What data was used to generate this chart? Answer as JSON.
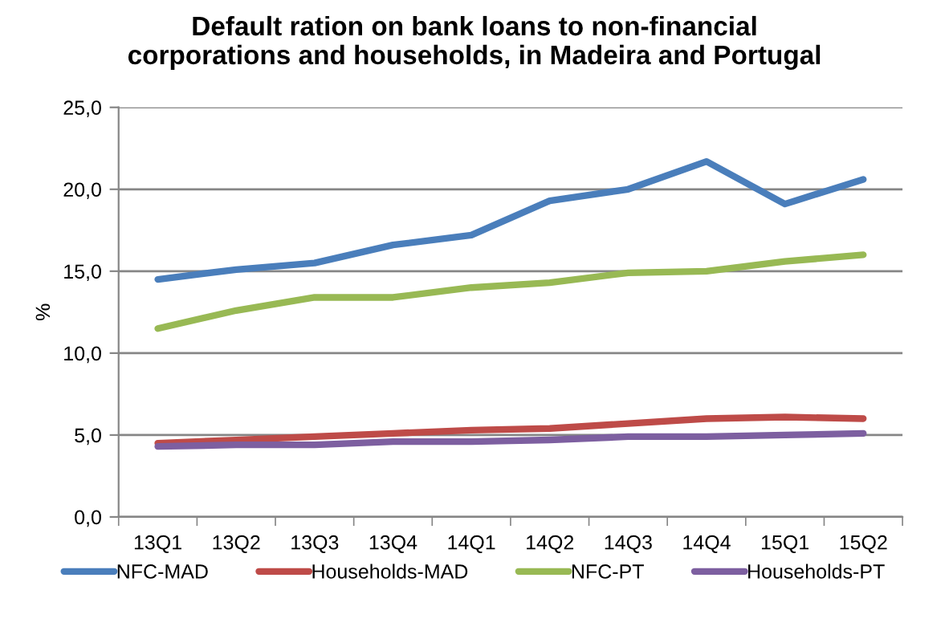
{
  "chart_data": {
    "type": "line",
    "title": "Default ration on bank loans to non-financial\ncorporations and households, in Madeira and Portugal",
    "ylabel": "%",
    "categories": [
      "13Q1",
      "13Q2",
      "13Q3",
      "13Q4",
      "14Q1",
      "14Q2",
      "14Q3",
      "14Q4",
      "15Q1",
      "15Q2"
    ],
    "series": [
      {
        "name": "NFC-MAD",
        "color": "#4a7ebb",
        "values": [
          14.5,
          15.1,
          15.5,
          16.6,
          17.2,
          19.3,
          20.0,
          21.7,
          19.1,
          20.6
        ]
      },
      {
        "name": "Households-MAD",
        "color": "#be4b48",
        "values": [
          4.5,
          4.7,
          4.9,
          5.1,
          5.3,
          5.4,
          5.7,
          6.0,
          6.1,
          6.0
        ]
      },
      {
        "name": "NFC-PT",
        "color": "#98b954",
        "values": [
          11.5,
          12.6,
          13.4,
          13.4,
          14.0,
          14.3,
          14.9,
          15.0,
          15.6,
          16.0
        ]
      },
      {
        "name": "Households-PT",
        "color": "#7d5fa0",
        "values": [
          4.3,
          4.4,
          4.4,
          4.6,
          4.6,
          4.7,
          4.9,
          4.9,
          5.0,
          5.1
        ]
      }
    ],
    "ylim": [
      0,
      25
    ],
    "yticks": [
      {
        "value": 0,
        "label": "0,0"
      },
      {
        "value": 5,
        "label": "5,0"
      },
      {
        "value": 10,
        "label": "10,0"
      },
      {
        "value": 15,
        "label": "15,0"
      },
      {
        "value": 20,
        "label": "20,0"
      },
      {
        "value": 25,
        "label": "25,0"
      }
    ],
    "grid": "y",
    "legend": "bottom",
    "marker": "none",
    "line_style": "solid"
  }
}
